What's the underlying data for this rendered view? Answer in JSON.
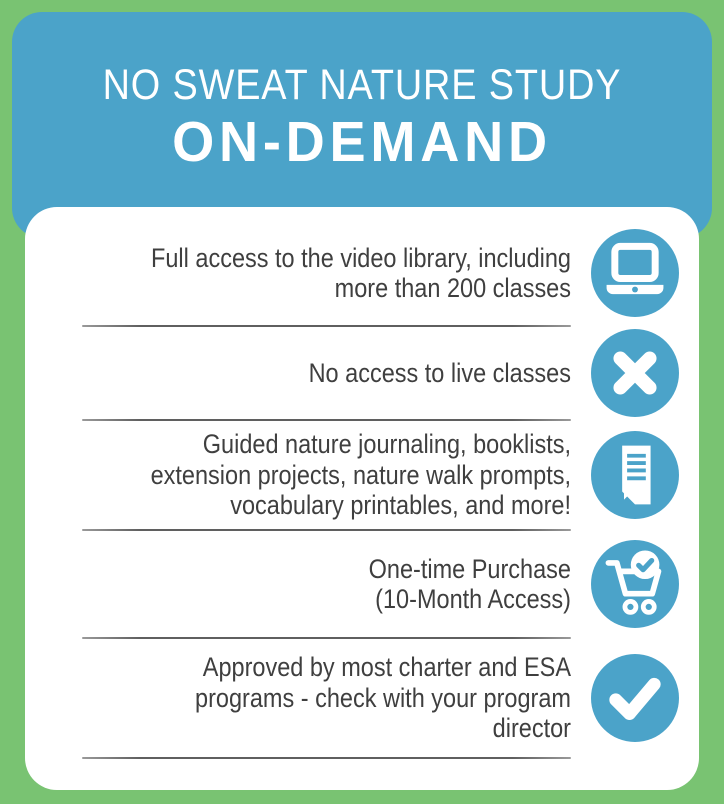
{
  "colors": {
    "background_green": "#79c372",
    "accent_blue": "#4ba3c9",
    "card_white": "#ffffff",
    "text_dark": "#3f3f3f",
    "divider_gray": "#5f5f5f"
  },
  "header": {
    "title_line1": "NO SWEAT NATURE STUDY",
    "title_line2": "ON-DEMAND"
  },
  "features": [
    {
      "icon": "laptop-icon",
      "text": "Full access to the video library, including more than 200 classes",
      "lines": [
        "Full access to the video library, including",
        "more than 200 classes"
      ]
    },
    {
      "icon": "x-icon",
      "text": "No access to live classes",
      "lines": [
        "No access to live classes"
      ]
    },
    {
      "icon": "document-icon",
      "text": "Guided nature journaling, booklists, extension projects, nature walk prompts, vocabulary printables, and more!",
      "lines": [
        "Guided nature journaling, booklists,",
        "extension projects, nature walk prompts,",
        "vocabulary printables, and more!"
      ]
    },
    {
      "icon": "cart-check-icon",
      "text": "One-time Purchase (10-Month Access)",
      "lines": [
        "One-time Purchase",
        "(10-Month Access)"
      ]
    },
    {
      "icon": "check-icon",
      "text": "Approved by most charter and ESA programs - check with your program director",
      "lines": [
        "Approved by most charter and ESA",
        "programs - check with your program",
        "director"
      ]
    }
  ]
}
